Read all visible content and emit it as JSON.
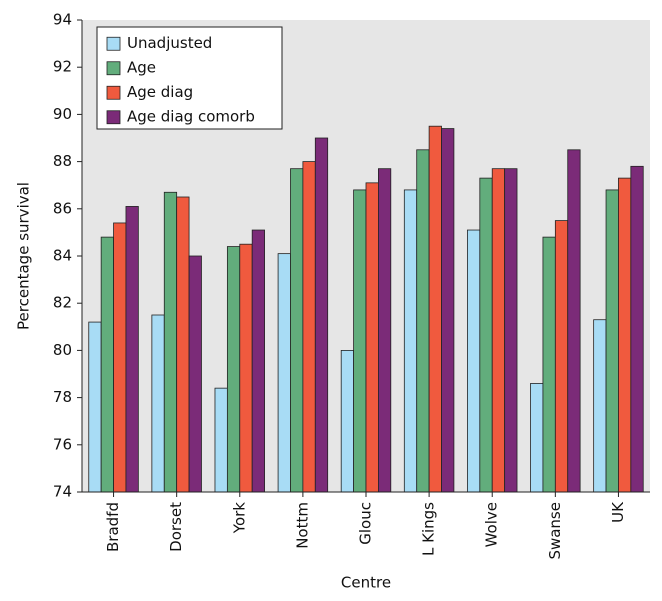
{
  "chart_data": {
    "type": "bar",
    "categories": [
      "Bradfd",
      "Dorset",
      "York",
      "Nottm",
      "Glouc",
      "L Kings",
      "Wolve",
      "Swanse",
      "UK"
    ],
    "series": [
      {
        "name": "Unadjusted",
        "color": "#a8dcf5",
        "values": [
          81.2,
          81.5,
          78.4,
          84.1,
          80.0,
          86.8,
          85.1,
          78.6,
          81.3
        ]
      },
      {
        "name": "Age",
        "color": "#62ad7c",
        "values": [
          84.8,
          86.7,
          84.4,
          87.7,
          86.8,
          88.5,
          87.3,
          84.8,
          86.8
        ]
      },
      {
        "name": "Age diag",
        "color": "#f05a3e",
        "values": [
          85.4,
          86.5,
          84.5,
          88.0,
          87.1,
          89.5,
          87.7,
          85.5,
          87.3
        ]
      },
      {
        "name": "Age diag comorb",
        "color": "#7b2b78",
        "values": [
          86.1,
          84.0,
          85.1,
          89.0,
          87.7,
          89.4,
          87.7,
          88.5,
          87.8
        ]
      }
    ],
    "ylim": [
      74,
      94
    ],
    "yticks": [
      74,
      76,
      78,
      80,
      82,
      84,
      86,
      88,
      90,
      92,
      94
    ],
    "y_label": "Percentage survival",
    "x_label": "Centre",
    "legend": "upper-left"
  }
}
